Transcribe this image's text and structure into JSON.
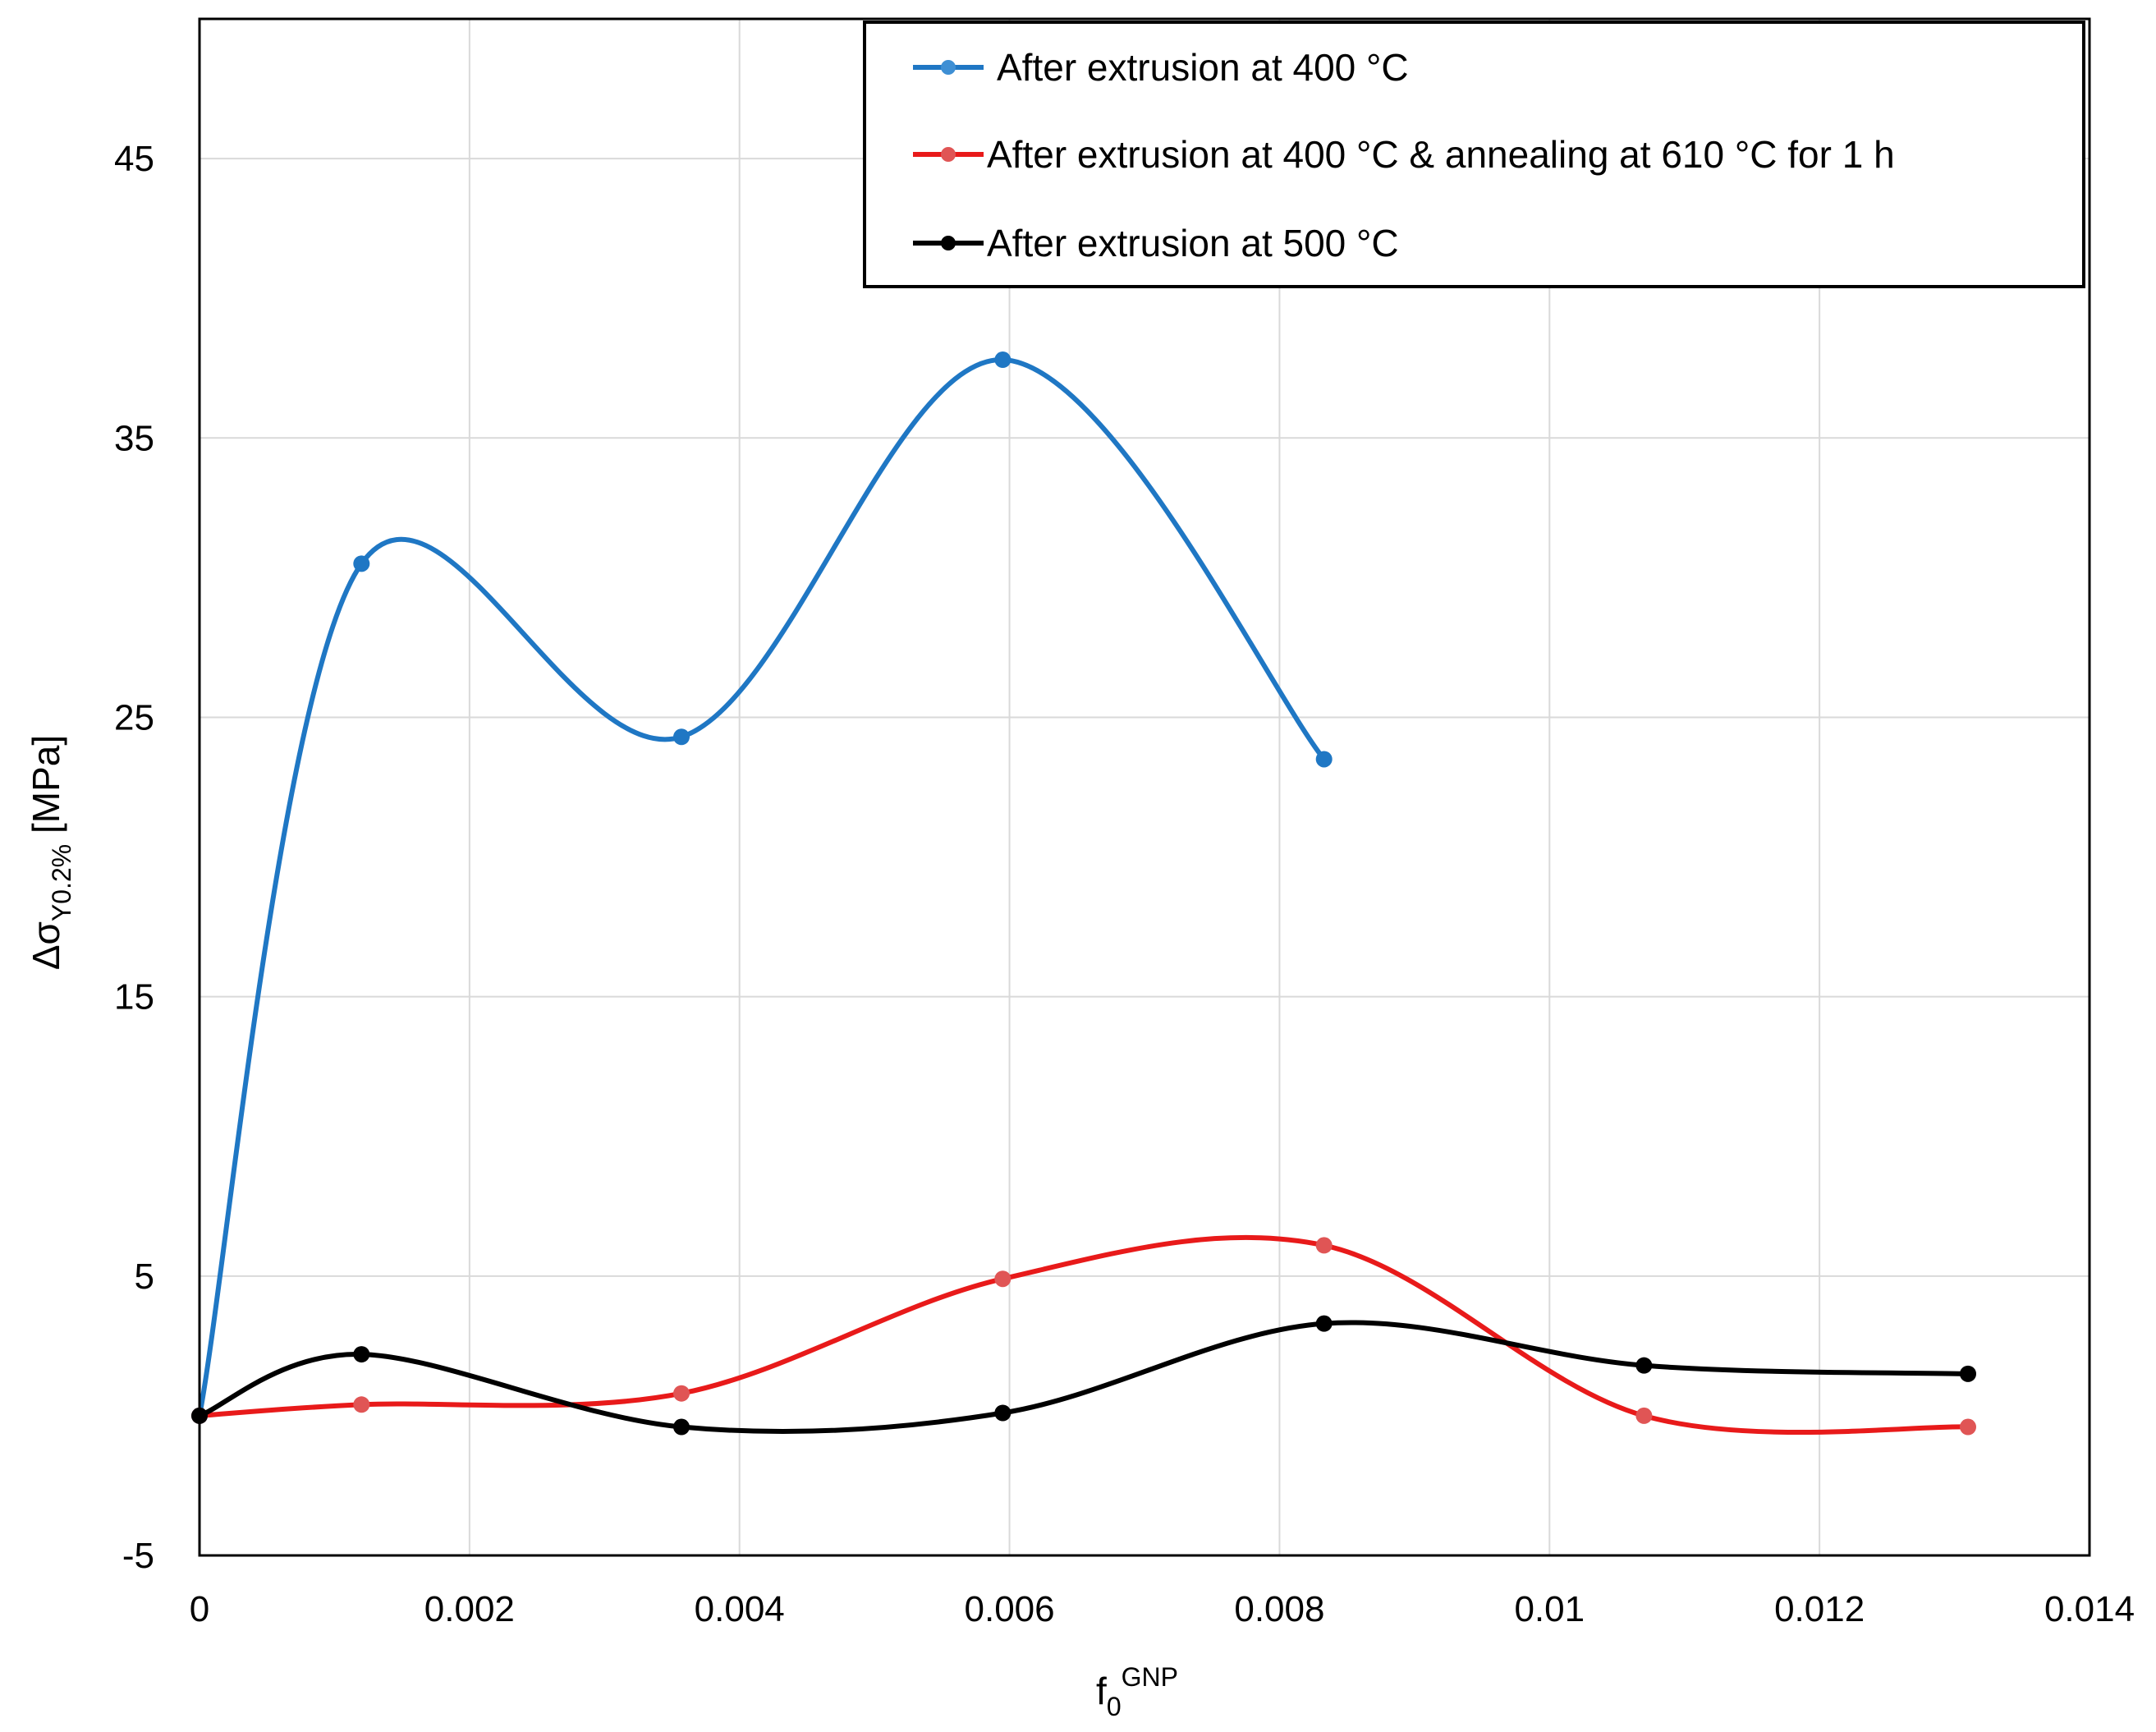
{
  "chart_data": {
    "type": "line",
    "title": "",
    "xlabel": "f",
    "xlabel_sub": "0",
    "xlabel_sup": "GNP",
    "ylabel": "Δσ",
    "ylabel_sub": "Y0.2%",
    "ylabel_unit": " [MPa]",
    "xlim": [
      0,
      0.014
    ],
    "ylim": [
      -5,
      50
    ],
    "xticks": [
      0,
      0.002,
      0.004,
      0.006,
      0.008,
      0.01,
      0.012,
      0.014
    ],
    "xtick_labels": [
      "0",
      "0.002",
      "0.004",
      "0.006",
      "0.008",
      "0.01",
      "0.012",
      "0.014"
    ],
    "yticks": [
      -5,
      5,
      15,
      25,
      35,
      45
    ],
    "ytick_labels": [
      "-5",
      "5",
      "15",
      "25",
      "35",
      "45"
    ],
    "grid": true,
    "legend_position": "top-right",
    "smooth": true,
    "series": [
      {
        "name": "After extrusion at 400 °C",
        "color": "#1f77c4",
        "x": [
          0,
          0.0012,
          0.00357,
          0.00595,
          0.00833
        ],
        "y": [
          0,
          30.5,
          24.3,
          37.8,
          23.5
        ]
      },
      {
        "name": "After extrusion at 400 °C & annealing at 610 °C for 1 h",
        "color": "#e81a1a",
        "marker_color": "#e05555",
        "x": [
          0,
          0.0012,
          0.00357,
          0.00595,
          0.00833,
          0.0107,
          0.0131
        ],
        "y": [
          0,
          0.4,
          0.8,
          4.9,
          6.1,
          0,
          -0.4
        ]
      },
      {
        "name": "After extrusion at 500 °C",
        "color": "#000000",
        "x": [
          0,
          0.0012,
          0.00357,
          0.00595,
          0.00833,
          0.0107,
          0.0131
        ],
        "y": [
          0,
          2.2,
          -0.4,
          0.1,
          3.3,
          1.8,
          1.5
        ]
      }
    ]
  }
}
